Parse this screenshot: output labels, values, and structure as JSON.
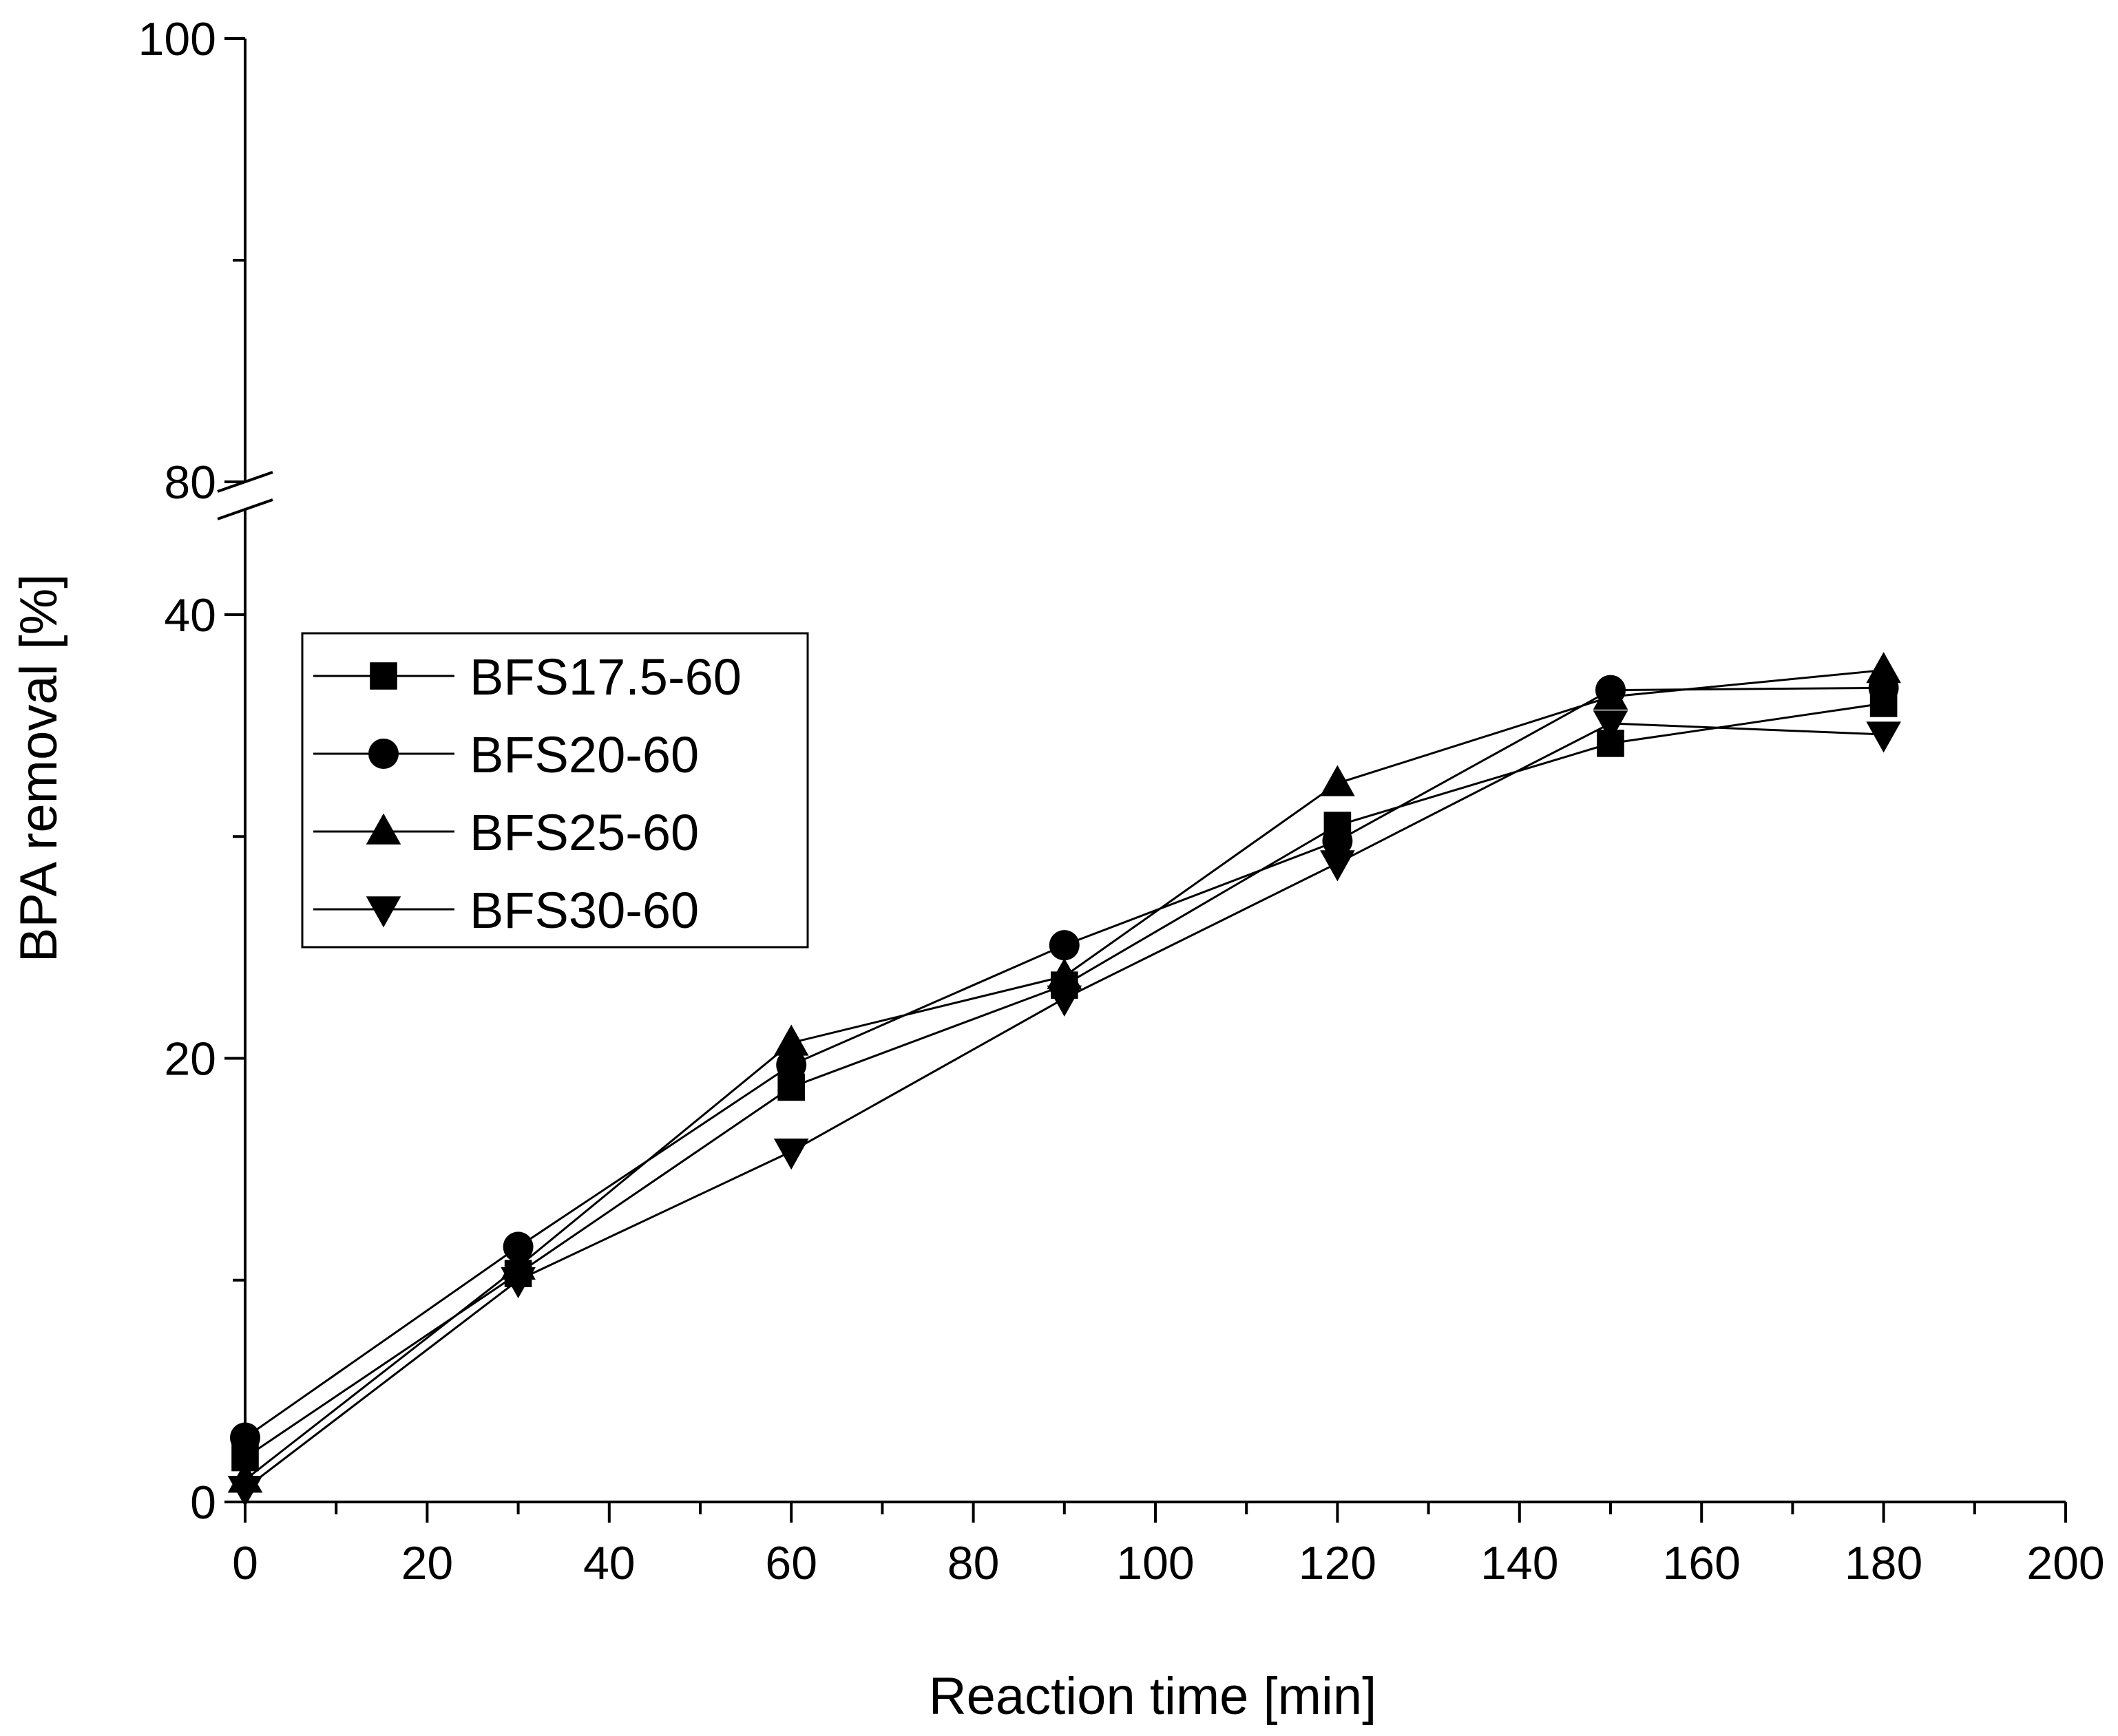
{
  "chart_data": {
    "type": "line",
    "title": "",
    "xlabel": "Reaction time [min]",
    "ylabel": "BPA removal [%]",
    "xlim": [
      0,
      200
    ],
    "x_ticks": [
      "0",
      "20",
      "40",
      "60",
      "80",
      "100",
      "120",
      "140",
      "160",
      "180",
      "200"
    ],
    "y_ticks_lower": [
      "0",
      "20",
      "40"
    ],
    "y_ticks_upper": [
      "80",
      "100"
    ],
    "y_axis_break": {
      "lower_range": [
        0,
        42
      ],
      "upper_range": [
        80,
        100
      ]
    },
    "grid": false,
    "legend_position": "upper-left",
    "x": [
      0,
      30,
      60,
      90,
      120,
      150,
      180
    ],
    "series": [
      {
        "name": "BFS17.5-60",
        "marker": "square",
        "values": [
          2.0,
          10.3,
          18.7,
          23.3,
          30.5,
          34.2,
          36.0
        ]
      },
      {
        "name": "BFS20-60",
        "marker": "circle",
        "values": [
          2.9,
          11.5,
          19.7,
          25.1,
          29.8,
          36.6,
          36.7
        ]
      },
      {
        "name": "BFS25-60",
        "marker": "triangle-up",
        "values": [
          1.0,
          10.6,
          20.7,
          23.7,
          32.4,
          36.3,
          37.5
        ]
      },
      {
        "name": "BFS30-60",
        "marker": "triangle-down",
        "values": [
          0.6,
          10.0,
          15.8,
          22.7,
          28.8,
          35.1,
          34.6
        ]
      }
    ]
  }
}
